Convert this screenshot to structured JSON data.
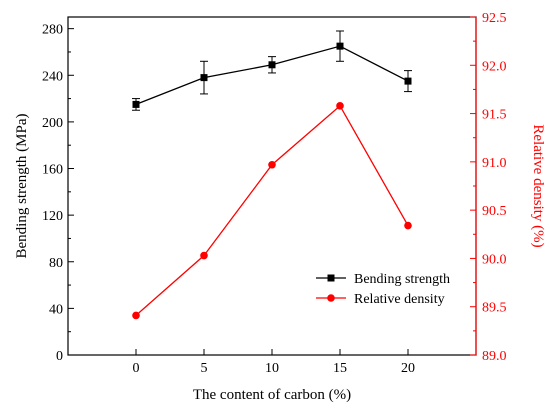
{
  "chart_data": {
    "type": "line",
    "x": [
      0,
      5,
      10,
      15,
      20
    ],
    "xlabel": "The content of carbon (%)",
    "xlim": [
      -5,
      25
    ],
    "xticks": [
      "0",
      "5",
      "10",
      "15",
      "20"
    ],
    "y_left": {
      "label": "Bending strength (MPa)",
      "lim": [
        0,
        290
      ],
      "ticks": [
        "0",
        "40",
        "80",
        "120",
        "160",
        "200",
        "240",
        "280"
      ]
    },
    "y_right": {
      "label": "Relative density (%)",
      "lim": [
        89.0,
        92.5
      ],
      "ticks": [
        "89.0",
        "89.5",
        "90.0",
        "90.5",
        "91.0",
        "91.5",
        "92.0",
        "92.5"
      ]
    },
    "series": [
      {
        "name": "Bending strength",
        "axis": "left",
        "color": "#000000",
        "marker": "square",
        "values": [
          215,
          238,
          249,
          265,
          235
        ],
        "error": [
          5,
          14,
          7,
          13,
          9
        ]
      },
      {
        "name": "Relative density",
        "axis": "right",
        "color": "#ff0000",
        "marker": "circle",
        "values": [
          89.41,
          90.03,
          90.97,
          91.58,
          90.34
        ]
      }
    ],
    "legend": {
      "position": "lower-right",
      "entries": [
        "Bending strength",
        "Relative density"
      ]
    }
  }
}
